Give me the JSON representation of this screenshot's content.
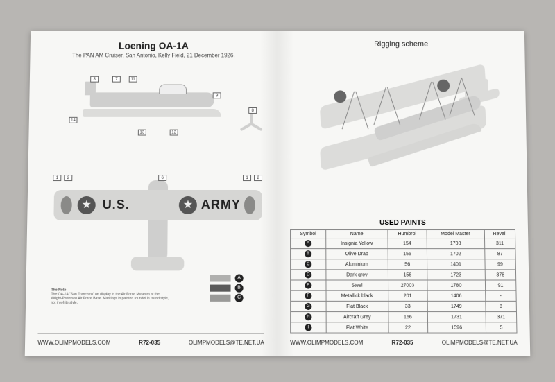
{
  "left": {
    "title": "Loening OA-1A",
    "subtitle": "The PAN AM Cruiser, San Antonio, Kelly Field, 21 December 1926.",
    "wing_text_left": "U.S.",
    "wing_text_right": "ARMY",
    "callouts_side": [
      "3",
      "7",
      "11",
      "9",
      "12",
      "13",
      "14",
      "8"
    ],
    "callouts_wing_left": [
      "1",
      "2"
    ],
    "callouts_wing_right": [
      "1",
      "2"
    ],
    "callout_wing_center": "6",
    "swatches": [
      {
        "color": "#b0b0ae",
        "symbol": "A"
      },
      {
        "color": "#5a5a5a",
        "symbol": "B"
      },
      {
        "color": "#9a9a98",
        "symbol": "C"
      }
    ],
    "note_heading": "The Note",
    "note_body": "The OA-1A \"San Francisco\" on display in the Air Force Museum at the Wright-Patterson Air Force Base. Markings in painted roundel in round style, not in white style."
  },
  "right": {
    "title": "Rigging scheme",
    "used_title": "USED PAINTS",
    "table": {
      "headers": [
        "Symbol",
        "Name",
        "Humbrol",
        "Model Master",
        "Revell"
      ],
      "rows": [
        {
          "sym": "A",
          "name": "Insignia Yellow",
          "humbrol": "154",
          "mm": "1708",
          "rev": "311"
        },
        {
          "sym": "B",
          "name": "Olive Drab",
          "humbrol": "155",
          "mm": "1702",
          "rev": "87"
        },
        {
          "sym": "C",
          "name": "Aluminium",
          "humbrol": "56",
          "mm": "1401",
          "rev": "99"
        },
        {
          "sym": "D",
          "name": "Dark grey",
          "humbrol": "156",
          "mm": "1723",
          "rev": "378"
        },
        {
          "sym": "E",
          "name": "Steel",
          "humbrol": "27003",
          "mm": "1780",
          "rev": "91"
        },
        {
          "sym": "F",
          "name": "Metallick black",
          "humbrol": "201",
          "mm": "1406",
          "rev": "-"
        },
        {
          "sym": "G",
          "name": "Flat Black",
          "humbrol": "33",
          "mm": "1749",
          "rev": "8"
        },
        {
          "sym": "H",
          "name": "Aircraft Grey",
          "humbrol": "166",
          "mm": "1731",
          "rev": "371"
        },
        {
          "sym": "I",
          "name": "Flat White",
          "humbrol": "22",
          "mm": "1596",
          "rev": "5"
        }
      ]
    }
  },
  "footer": {
    "site": "WWW.OLIMPMODELS.COM",
    "code": "R72-035",
    "email": "OLIMPMODELS@TE.NET.UA"
  },
  "colors": {
    "page_bg": "#f7f7f5",
    "outer_bg": "#b8b6b3",
    "ink": "#222222",
    "line": "#999999",
    "plane_fill": "#d6d6d4"
  }
}
